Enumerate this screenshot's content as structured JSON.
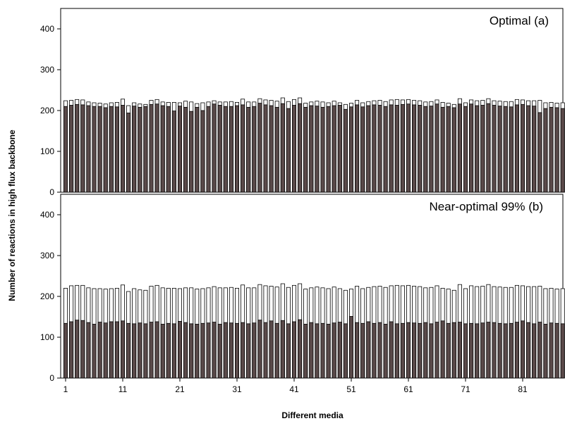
{
  "chart_data": {
    "xlabel": "Different media",
    "ylabel": "Number of reactions in high flux backbone",
    "x_tick_labels": [
      "1",
      "11",
      "21",
      "31",
      "41",
      "51",
      "61",
      "71",
      "81"
    ],
    "y_tick_labels": [
      "0",
      "100",
      "200",
      "300",
      "400"
    ],
    "panels": [
      {
        "type": "bar",
        "title": "Optimal (a)",
        "ylim": [
          0,
          450
        ],
        "x": [
          1,
          2,
          3,
          4,
          5,
          6,
          7,
          8,
          9,
          10,
          11,
          12,
          13,
          14,
          15,
          16,
          17,
          18,
          19,
          20,
          21,
          22,
          23,
          24,
          25,
          26,
          27,
          28,
          29,
          30,
          31,
          32,
          33,
          34,
          35,
          36,
          37,
          38,
          39,
          40,
          41,
          42,
          43,
          44,
          45,
          46,
          47,
          48,
          49,
          50,
          51,
          52,
          53,
          54,
          55,
          56,
          57,
          58,
          59,
          60,
          61,
          62,
          63,
          64,
          65,
          66,
          67,
          68,
          69,
          70,
          71,
          72,
          73,
          74,
          75,
          76,
          77,
          78,
          79,
          80,
          81,
          82,
          83,
          84,
          85,
          86,
          87,
          88
        ],
        "series": [
          {
            "fill": "#ffffff",
            "values": [
              224,
              225,
              227,
              226,
              221,
              219,
              218,
              216,
              219,
              220,
              228,
              212,
              219,
              216,
              215,
              225,
              227,
              221,
              220,
              220,
              219,
              223,
              221,
              217,
              219,
              221,
              224,
              221,
              221,
              222,
              220,
              228,
              221,
              221,
              229,
              226,
              225,
              223,
              231,
              222,
              227,
              231,
              218,
              221,
              223,
              221,
              219,
              223,
              219,
              215,
              218,
              225,
              219,
              222,
              224,
              225,
              222,
              226,
              227,
              226,
              227,
              225,
              224,
              221,
              222,
              226,
              220,
              218,
              215,
              229,
              219,
              226,
              224,
              225,
              229,
              224,
              223,
              222,
              222,
              227,
              226,
              224,
              224,
              225,
              219,
              220,
              218,
              219
            ]
          },
          {
            "fill": "#5a4a4a",
            "values": [
              210,
              213,
              215,
              214,
              212,
              210,
              210,
              207,
              210,
              209,
              213,
              194,
              211,
              208,
              210,
              215,
              216,
              212,
              210,
              199,
              211,
              208,
              198,
              208,
              200,
              210,
              216,
              213,
              210,
              210,
              212,
              214,
              208,
              210,
              218,
              214,
              212,
              208,
              217,
              205,
              213,
              217,
              208,
              212,
              211,
              208,
              210,
              212,
              213,
              203,
              209,
              214,
              209,
              212,
              214,
              213,
              210,
              214,
              213,
              215,
              216,
              214,
              213,
              210,
              211,
              216,
              208,
              210,
              207,
              216,
              210,
              216,
              212,
              213,
              217,
              213,
              211,
              210,
              209,
              214,
              215,
              212,
              211,
              195,
              205,
              208,
              207,
              205
            ]
          }
        ]
      },
      {
        "type": "bar",
        "title": "Near-optimal 99% (b)",
        "ylim": [
          0,
          450
        ],
        "x": [
          1,
          2,
          3,
          4,
          5,
          6,
          7,
          8,
          9,
          10,
          11,
          12,
          13,
          14,
          15,
          16,
          17,
          18,
          19,
          20,
          21,
          22,
          23,
          24,
          25,
          26,
          27,
          28,
          29,
          30,
          31,
          32,
          33,
          34,
          35,
          36,
          37,
          38,
          39,
          40,
          41,
          42,
          43,
          44,
          45,
          46,
          47,
          48,
          49,
          50,
          51,
          52,
          53,
          54,
          55,
          56,
          57,
          58,
          59,
          60,
          61,
          62,
          63,
          64,
          65,
          66,
          67,
          68,
          69,
          70,
          71,
          72,
          73,
          74,
          75,
          76,
          77,
          78,
          79,
          80,
          81,
          82,
          83,
          84,
          85,
          86,
          87,
          88
        ],
        "series": [
          {
            "fill": "#ffffff",
            "values": [
              220,
              226,
              227,
              227,
              221,
              219,
              219,
              218,
              219,
              220,
              228,
              212,
              219,
              216,
              215,
              225,
              227,
              221,
              220,
              220,
              219,
              221,
              221,
              218,
              219,
              221,
              224,
              221,
              221,
              222,
              220,
              228,
              221,
              221,
              229,
              226,
              225,
              223,
              231,
              222,
              227,
              231,
              218,
              221,
              223,
              221,
              219,
              223,
              219,
              215,
              218,
              225,
              219,
              222,
              224,
              225,
              222,
              226,
              227,
              226,
              227,
              225,
              224,
              221,
              222,
              226,
              220,
              218,
              215,
              229,
              219,
              226,
              224,
              225,
              229,
              224,
              223,
              222,
              222,
              227,
              226,
              224,
              224,
              225,
              219,
              220,
              218,
              219
            ]
          },
          {
            "fill": "#5a4a4a",
            "values": [
              134,
              138,
              142,
              141,
              136,
              132,
              137,
              135,
              138,
              138,
              140,
              134,
              133,
              135,
              133,
              137,
              138,
              132,
              134,
              133,
              139,
              136,
              133,
              132,
              134,
              135,
              137,
              132,
              136,
              135,
              134,
              136,
              133,
              135,
              142,
              136,
              140,
              134,
              141,
              133,
              138,
              143,
              132,
              136,
              133,
              134,
              132,
              135,
              137,
              133,
              151,
              136,
              134,
              138,
              134,
              136,
              132,
              138,
              133,
              134,
              136,
              135,
              134,
              136,
              133,
              137,
              140,
              134,
              136,
              137,
              133,
              134,
              133,
              135,
              137,
              136,
              134,
              133,
              134,
              137,
              140,
              136,
              133,
              137,
              132,
              135,
              134,
              133
            ]
          }
        ]
      }
    ]
  }
}
